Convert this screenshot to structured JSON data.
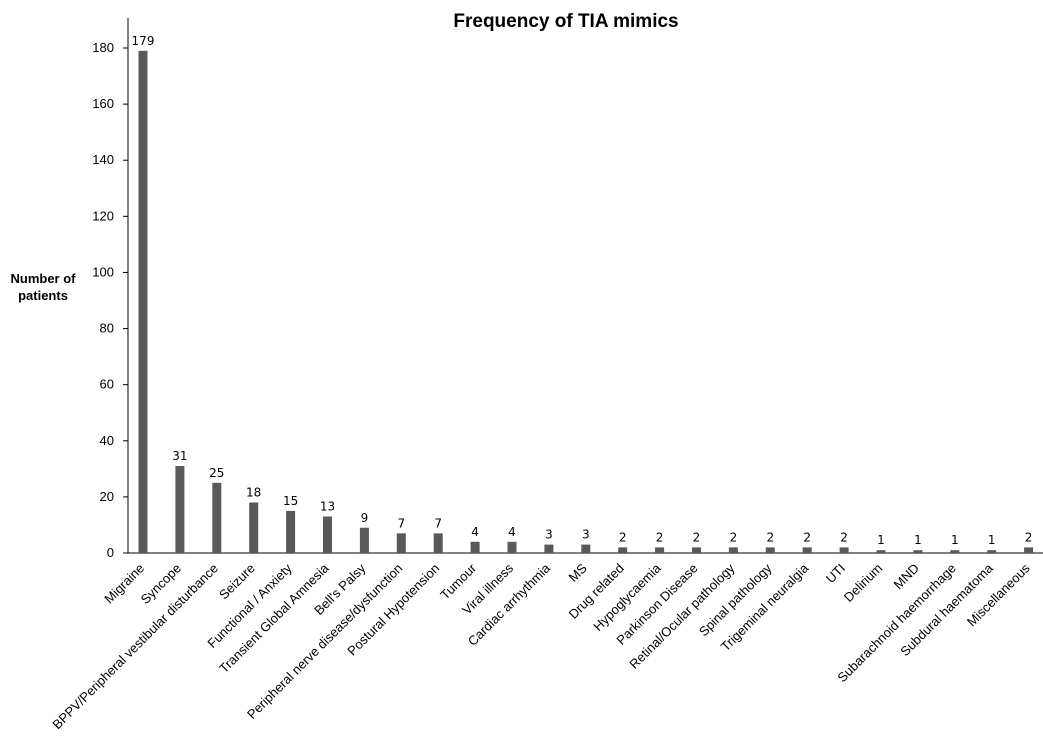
{
  "chart_data": {
    "type": "bar",
    "title": "Frequency of TIA mimics",
    "xlabel": "",
    "ylabel": [
      "Number of",
      "patients"
    ],
    "ylim": [
      0,
      180
    ],
    "yticks": [
      0,
      20,
      40,
      60,
      80,
      100,
      120,
      140,
      160,
      180
    ],
    "grid": false,
    "legend": "none",
    "bar_color": "#595959",
    "categories": [
      "Migraine",
      "Syncope",
      "BPPV/Peripheral vestibular disturbance",
      "Seizure",
      "Functional / Anxiety",
      "Transient Global Amnesia",
      "Bell's Palsy",
      "Peripheral nerve disease/dysfunction",
      "Postural Hypotension",
      "Tumour",
      "Viral illness",
      "Cardiac arrhythmia",
      "MS",
      "Drug related",
      "Hypoglycaemia",
      "Parkinson Disease",
      "Retinal/Ocular pathology",
      "Spinal pathology",
      "Trigeminal neuralgia",
      "UTI",
      "Delirium",
      "MND",
      "Subarachnoid haemorrhage",
      "Subdural haematoma",
      "Miscellaneous"
    ],
    "values": [
      179,
      31,
      25,
      18,
      15,
      13,
      9,
      7,
      7,
      4,
      4,
      3,
      3,
      2,
      2,
      2,
      2,
      2,
      2,
      2,
      1,
      1,
      1,
      1,
      2
    ]
  }
}
